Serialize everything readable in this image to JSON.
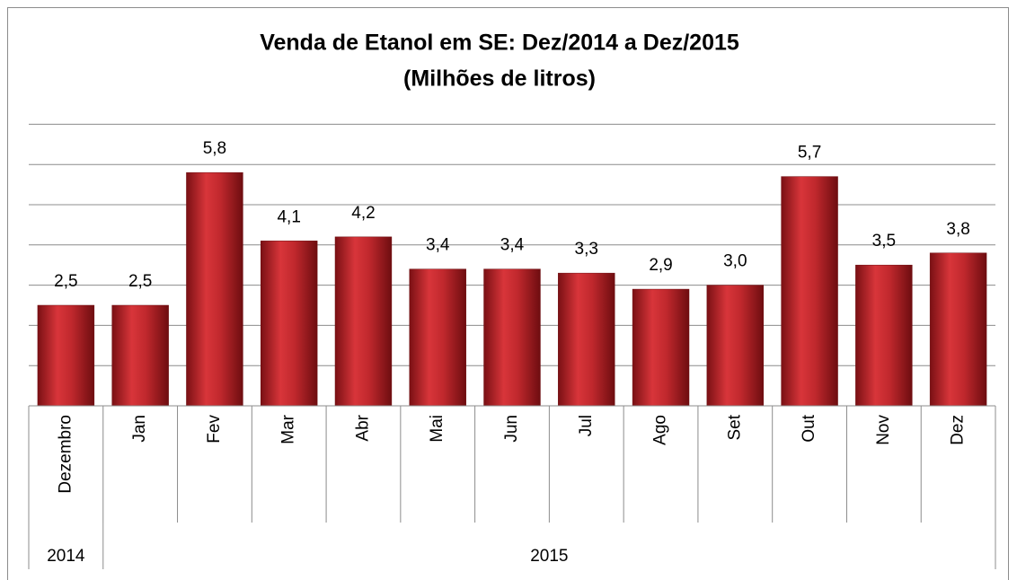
{
  "chart_data": {
    "type": "bar",
    "title": "Venda de Etanol em SE: Dez/2014 a Dez/2015",
    "subtitle": "(Milhões de litros)",
    "categories": [
      "Dezembro",
      "Jan",
      "Fev",
      "Mar",
      "Abr",
      "Mai",
      "Jun",
      "Jul",
      "Ago",
      "Set",
      "Out",
      "Nov",
      "Dez"
    ],
    "groups": [
      {
        "label": "2014",
        "count": 1
      },
      {
        "label": "2015",
        "count": 12
      }
    ],
    "values": [
      2.5,
      2.5,
      5.8,
      4.1,
      4.2,
      3.4,
      3.4,
      3.3,
      2.9,
      3.0,
      5.7,
      3.5,
      3.8
    ],
    "value_labels": [
      "2,5",
      "2,5",
      "5,8",
      "4,1",
      "4,2",
      "3,4",
      "3,4",
      "3,3",
      "2,9",
      "3,0",
      "5,7",
      "3,5",
      "3,8"
    ],
    "color": "#c0282d",
    "ylim": [
      0,
      7
    ],
    "yticks": [
      0,
      1,
      2,
      3,
      4,
      5,
      6,
      7
    ],
    "grid": true
  }
}
